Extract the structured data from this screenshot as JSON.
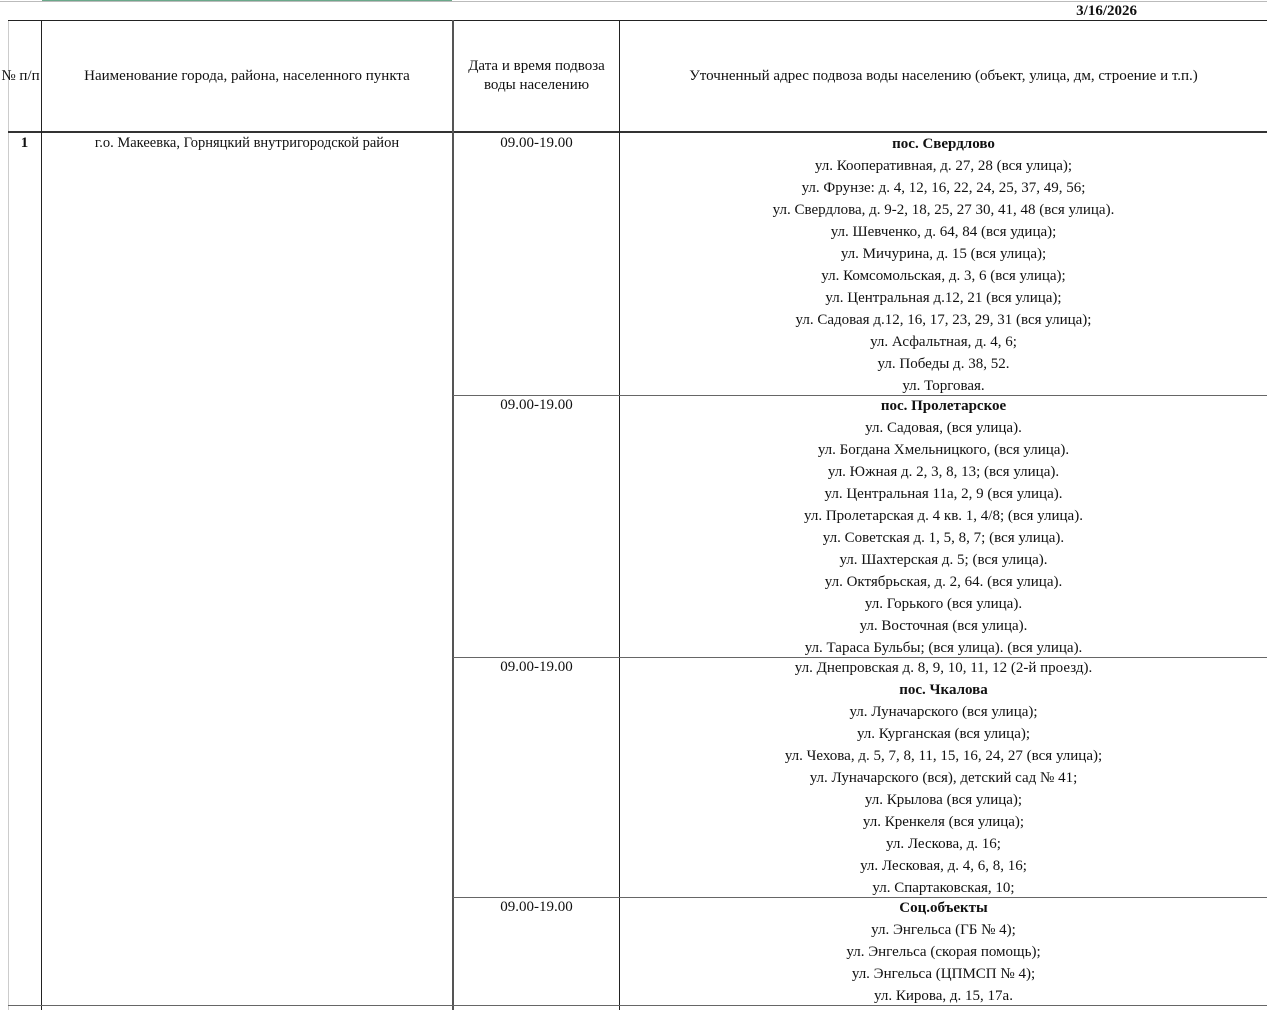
{
  "date": "3/16/2026",
  "colors": {
    "accent_bar": "#6aa88a",
    "border": "#222222"
  },
  "headers": {
    "num": "№ п/п",
    "name": "Наименование города, района, населенного пункта",
    "datetime": "Дата и время подвоза воды населению",
    "address": "Уточненный адрес подвоза воды населению (объект, улица, дм, строение и т.п.)"
  },
  "row": {
    "num": "1",
    "name": "г.о. Макеевка, Горняцкий внутригородской район",
    "blocks": [
      {
        "time": "09.00-19.00",
        "lines": [
          {
            "t": "пос. Свердлово",
            "bold": true
          },
          {
            "t": "ул. Кооперативная, д. 27, 28 (вся улица);"
          },
          {
            "t": "ул. Фрунзе: д. 4, 12, 16, 22, 24, 25, 37, 49, 56;"
          },
          {
            "t": "ул. Свердлова, д. 9-2, 18, 25, 27 30, 41, 48 (вся улица)."
          },
          {
            "t": "ул. Шевченко, д. 64, 84 (вся удица);"
          },
          {
            "t": "ул. Мичурина, д. 15 (вся улица);"
          },
          {
            "t": "ул. Комсомольская, д. 3, 6 (вся улица);"
          },
          {
            "t": "ул. Центральная д.12, 21 (вся улица);"
          },
          {
            "t": "ул. Садовая д.12, 16, 17, 23, 29, 31 (вся улица);"
          },
          {
            "t": "ул. Асфальтная, д. 4, 6;"
          },
          {
            "t": "ул. Победы д. 38, 52."
          },
          {
            "t": "ул. Торговая."
          }
        ]
      },
      {
        "time": "09.00-19.00",
        "lines": [
          {
            "t": "пос. Пролетарское",
            "bold": true
          },
          {
            "t": "ул. Садовая, (вся улица)."
          },
          {
            "t": "ул. Богдана Хмельницкого, (вся улица)."
          },
          {
            "t": "ул. Южная д. 2, 3, 8, 13; (вся улица)."
          },
          {
            "t": "ул. Центральная 11а, 2, 9 (вся улица)."
          },
          {
            "t": "ул. Пролетарская д. 4 кв. 1, 4/8; (вся улица)."
          },
          {
            "t": "ул. Советская д. 1, 5, 8, 7; (вся улица)."
          },
          {
            "t": "ул. Шахтерская д. 5; (вся улица)."
          },
          {
            "t": "ул. Октябрьская, д. 2, 64. (вся улица)."
          },
          {
            "t": "ул. Горького (вся улица)."
          },
          {
            "t": "ул. Восточная (вся улица)."
          },
          {
            "t": "ул. Тараса Бульбы; (вся улица). (вся улица)."
          }
        ]
      },
      {
        "time": "09.00-19.00",
        "lines": [
          {
            "t": "ул. Днепровская д. 8, 9, 10, 11, 12 (2-й проезд)."
          },
          {
            "t": "пос. Чкалова",
            "bold": true
          },
          {
            "t": "ул. Луначарского (вся улица);"
          },
          {
            "t": "ул. Курганская (вся улица);"
          },
          {
            "t": "ул. Чехова, д. 5, 7, 8, 11, 15, 16, 24, 27 (вся улица);"
          },
          {
            "t": "ул. Луначарского (вся), детский сад № 41;"
          },
          {
            "t": "ул. Крылова (вся улица);"
          },
          {
            "t": "ул. Кренкеля (вся улица);"
          },
          {
            "t": "ул. Лескова, д. 16;"
          },
          {
            "t": "ул. Лесковая, д. 4, 6, 8, 16;"
          },
          {
            "t": "ул. Спартаковская, 10;"
          }
        ]
      },
      {
        "time": "09.00-19.00",
        "lines": [
          {
            "t": "Соц.объекты",
            "bold": true
          },
          {
            "t": "ул. Энгельса (ГБ № 4);"
          },
          {
            "t": "ул. Энгельса (скорая помощь);"
          },
          {
            "t": "ул. Энгельса (ЦПМСП № 4);"
          },
          {
            "t": "ул. Кирова, д. 15, 17а."
          }
        ]
      }
    ]
  }
}
